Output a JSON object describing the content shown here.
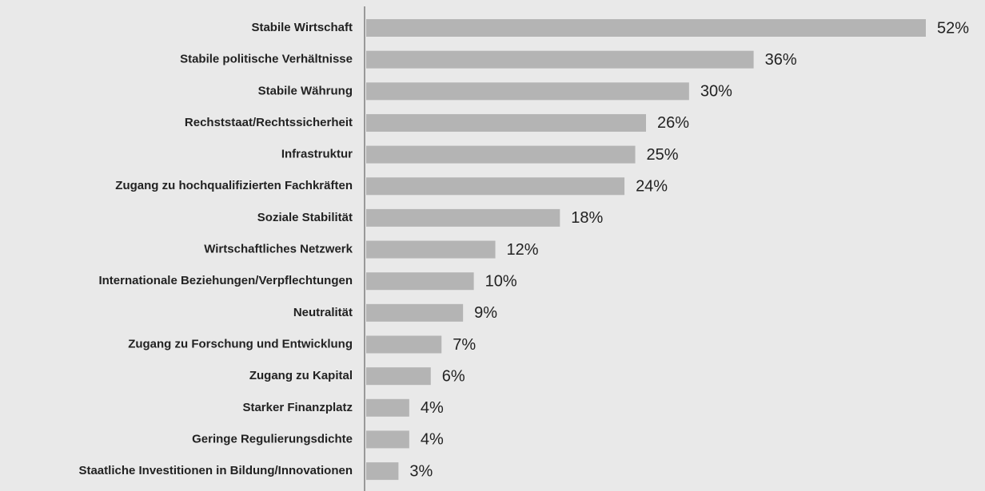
{
  "chart_data": {
    "type": "bar",
    "orientation": "horizontal",
    "color": "#b4b4b4",
    "categories": [
      "Stabile Wirtschaft",
      "Stabile politische Verhältnisse",
      "Stabile Währung",
      "Rechststaat/Rechtssicherheit",
      "Infrastruktur",
      "Zugang zu hochqualifizierten Fachkräften",
      "Soziale Stabilität",
      "Wirtschaftliches Netzwerk",
      "Internationale Beziehungen/Verpflechtungen",
      "Neutralität",
      "Zugang zu Forschung und Entwicklung",
      "Zugang zu Kapital",
      "Starker Finanzplatz",
      "Geringe Regulierungsdichte",
      "Staatliche Investitionen in Bildung/Innovationen"
    ],
    "values": [
      52,
      36,
      30,
      26,
      25,
      24,
      18,
      12,
      10,
      9,
      7,
      6,
      4,
      4,
      3
    ],
    "value_labels": [
      "52%",
      "36%",
      "30%",
      "26%",
      "25%",
      "24%",
      "18%",
      "12%",
      "10%",
      "9%",
      "7%",
      "6%",
      "4%",
      "4%",
      "3%"
    ]
  }
}
